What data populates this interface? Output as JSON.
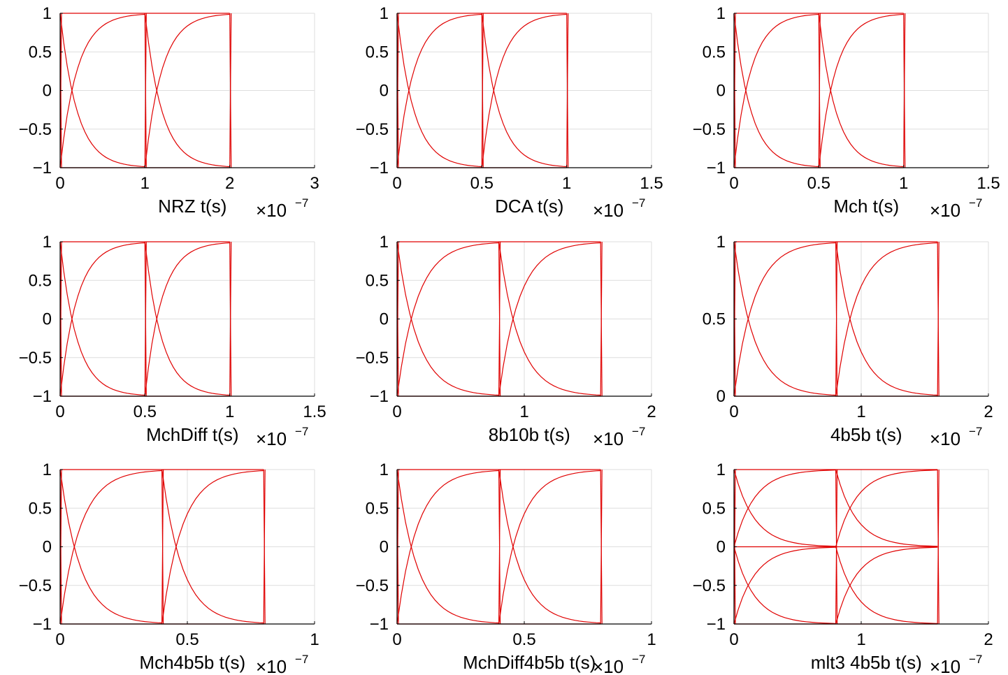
{
  "chart_data": [
    {
      "type": "line",
      "xlabel": "NRZ t(s)",
      "x_multiplier": "×10",
      "x_exponent": "−7",
      "xlim": [
        0,
        3
      ],
      "ylim": [
        -1,
        1
      ],
      "xticks": [
        0,
        1,
        2,
        3
      ],
      "xtick_labels": [
        "0",
        "1",
        "2",
        "3"
      ],
      "yticks": [
        -1,
        -0.5,
        0,
        0.5,
        1
      ],
      "ytick_labels": [
        "−1",
        "−0.5",
        "0",
        "0.5",
        "1"
      ],
      "grid": true,
      "line_color": "#e00000",
      "eye": {
        "ui": 1,
        "n_ui": 2,
        "levels": [
          -1,
          1
        ],
        "tau": 0.2
      }
    },
    {
      "type": "line",
      "xlabel": "DCA t(s)",
      "x_multiplier": "×10",
      "x_exponent": "−7",
      "xlim": [
        0,
        1.5
      ],
      "ylim": [
        -1,
        1
      ],
      "xticks": [
        0,
        0.5,
        1,
        1.5
      ],
      "xtick_labels": [
        "0",
        "0.5",
        "1",
        "1.5"
      ],
      "yticks": [
        -1,
        -0.5,
        0,
        0.5,
        1
      ],
      "ytick_labels": [
        "−1",
        "−0.5",
        "0",
        "0.5",
        "1"
      ],
      "grid": true,
      "line_color": "#e00000",
      "eye": {
        "ui": 0.5,
        "n_ui": 2,
        "levels": [
          -1,
          1
        ],
        "tau": 0.1
      }
    },
    {
      "type": "line",
      "xlabel": "Mch t(s)",
      "x_multiplier": "×10",
      "x_exponent": "−7",
      "xlim": [
        0,
        1.5
      ],
      "ylim": [
        -1,
        1
      ],
      "xticks": [
        0,
        0.5,
        1,
        1.5
      ],
      "xtick_labels": [
        "0",
        "0.5",
        "1",
        "1.5"
      ],
      "yticks": [
        -1,
        -0.5,
        0,
        0.5,
        1
      ],
      "ytick_labels": [
        "−1",
        "−0.5",
        "0",
        "0.5",
        "1"
      ],
      "grid": true,
      "line_color": "#e00000",
      "eye": {
        "ui": 0.5,
        "n_ui": 2,
        "levels": [
          -1,
          1
        ],
        "tau": 0.1
      }
    },
    {
      "type": "line",
      "xlabel": "MchDiff t(s)",
      "x_multiplier": "×10",
      "x_exponent": "−7",
      "xlim": [
        0,
        1.5
      ],
      "ylim": [
        -1,
        1
      ],
      "xticks": [
        0,
        0.5,
        1,
        1.5
      ],
      "xtick_labels": [
        "0",
        "0.5",
        "1",
        "1.5"
      ],
      "yticks": [
        -1,
        -0.5,
        0,
        0.5,
        1
      ],
      "ytick_labels": [
        "−1",
        "−0.5",
        "0",
        "0.5",
        "1"
      ],
      "grid": true,
      "line_color": "#e00000",
      "eye": {
        "ui": 0.5,
        "n_ui": 2,
        "levels": [
          -1,
          1
        ],
        "tau": 0.1
      }
    },
    {
      "type": "line",
      "xlabel": "8b10b t(s)",
      "x_multiplier": "×10",
      "x_exponent": "−7",
      "xlim": [
        0,
        2
      ],
      "ylim": [
        -1,
        1
      ],
      "xticks": [
        0,
        1,
        2
      ],
      "xtick_labels": [
        "0",
        "1",
        "2"
      ],
      "yticks": [
        -1,
        -0.5,
        0,
        0.5,
        1
      ],
      "ytick_labels": [
        "−1",
        "−0.5",
        "0",
        "0.5",
        "1"
      ],
      "grid": true,
      "line_color": "#e00000",
      "eye": {
        "ui": 0.8,
        "n_ui": 2,
        "levels": [
          -1,
          1
        ],
        "tau": 0.16
      }
    },
    {
      "type": "line",
      "xlabel": "4b5b t(s)",
      "x_multiplier": "×10",
      "x_exponent": "−7",
      "xlim": [
        0,
        2
      ],
      "ylim": [
        0,
        1
      ],
      "xticks": [
        0,
        1,
        2
      ],
      "xtick_labels": [
        "0",
        "1",
        "2"
      ],
      "yticks": [
        0,
        0.5,
        1
      ],
      "ytick_labels": [
        "0",
        "0.5",
        "1"
      ],
      "grid": true,
      "line_color": "#e00000",
      "eye": {
        "ui": 0.8,
        "n_ui": 2,
        "levels": [
          0,
          1
        ],
        "tau": 0.16
      }
    },
    {
      "type": "line",
      "xlabel": "Mch4b5b t(s)",
      "x_multiplier": "×10",
      "x_exponent": "−7",
      "xlim": [
        0,
        1
      ],
      "ylim": [
        -1,
        1
      ],
      "xticks": [
        0,
        0.5,
        1
      ],
      "xtick_labels": [
        "0",
        "0.5",
        "1"
      ],
      "yticks": [
        -1,
        -0.5,
        0,
        0.5,
        1
      ],
      "ytick_labels": [
        "−1",
        "−0.5",
        "0",
        "0.5",
        "1"
      ],
      "grid": true,
      "line_color": "#e00000",
      "eye": {
        "ui": 0.4,
        "n_ui": 2,
        "levels": [
          -1,
          1
        ],
        "tau": 0.08
      }
    },
    {
      "type": "line",
      "xlabel": "MchDiff4b5b t(s)",
      "x_multiplier": "×10",
      "x_exponent": "−7",
      "xlim": [
        0,
        1
      ],
      "ylim": [
        -1,
        1
      ],
      "xticks": [
        0,
        0.5,
        1
      ],
      "xtick_labels": [
        "0",
        "0.5",
        "1"
      ],
      "yticks": [
        -1,
        -0.5,
        0,
        0.5,
        1
      ],
      "ytick_labels": [
        "−1",
        "−0.5",
        "0",
        "0.5",
        "1"
      ],
      "grid": true,
      "line_color": "#e00000",
      "eye": {
        "ui": 0.4,
        "n_ui": 2,
        "levels": [
          -1,
          1
        ],
        "tau": 0.08
      }
    },
    {
      "type": "line",
      "xlabel": "mlt3 4b5b t(s)",
      "x_multiplier": "×10",
      "x_exponent": "−7",
      "xlim": [
        0,
        2
      ],
      "ylim": [
        -1,
        1
      ],
      "xticks": [
        0,
        1,
        2
      ],
      "xtick_labels": [
        "0",
        "1",
        "2"
      ],
      "yticks": [
        -1,
        -0.5,
        0,
        0.5,
        1
      ],
      "ytick_labels": [
        "−1",
        "−0.5",
        "0",
        "0.5",
        "1"
      ],
      "grid": true,
      "line_color": "#e00000",
      "eye": {
        "ui": 0.8,
        "n_ui": 2,
        "levels": [
          -1,
          0,
          1
        ],
        "tau": 0.16
      }
    }
  ]
}
